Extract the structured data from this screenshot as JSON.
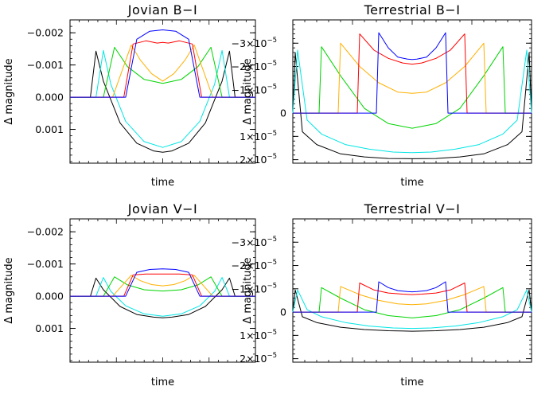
{
  "chart_data": [
    {
      "type": "line",
      "title": "Jovian B−I",
      "xlabel": "time",
      "ylabel": "Δ  magnitude",
      "yticks": [
        {
          "value": -0.002,
          "label": "−0.002"
        },
        {
          "value": -0.001,
          "label": "−0.001"
        },
        {
          "value": 0.0,
          "label": "0.000"
        },
        {
          "value": 0.001,
          "label": "0.001"
        }
      ],
      "ylim": [
        0.00205,
        -0.0024
      ],
      "inverted_y": true,
      "series": [
        {
          "color": "#000000",
          "x": [
            0.0,
            0.11,
            0.14,
            0.18,
            0.27,
            0.36,
            0.45,
            0.5,
            0.55,
            0.64,
            0.73,
            0.82,
            0.86,
            0.89,
            1.0
          ],
          "y": [
            0,
            0,
            -0.00143,
            -0.0005,
            0.0008,
            0.00143,
            0.00167,
            0.00171,
            0.00167,
            0.00143,
            0.0008,
            -0.0005,
            -0.00143,
            0,
            0
          ]
        },
        {
          "color": "#00e5e5",
          "x": [
            0.0,
            0.14,
            0.18,
            0.22,
            0.3,
            0.4,
            0.5,
            0.6,
            0.7,
            0.78,
            0.82,
            0.86,
            1.0
          ],
          "y": [
            0,
            0,
            -0.00145,
            -0.0004,
            0.00075,
            0.00138,
            0.00156,
            0.00138,
            0.00075,
            -0.0004,
            -0.00145,
            0,
            0
          ]
        },
        {
          "color": "#00d400",
          "x": [
            0.0,
            0.18,
            0.24,
            0.31,
            0.4,
            0.5,
            0.6,
            0.69,
            0.76,
            0.82,
            1.0
          ],
          "y": [
            0,
            0,
            -0.00155,
            -0.00095,
            -0.00055,
            -0.00043,
            -0.00055,
            -0.00095,
            -0.00155,
            0,
            0
          ]
        },
        {
          "color": "#ffb000",
          "x": [
            0.0,
            0.23,
            0.33,
            0.38,
            0.44,
            0.5,
            0.56,
            0.62,
            0.67,
            0.77,
            1.0
          ],
          "y": [
            0,
            0,
            -0.00162,
            -0.00115,
            -0.00073,
            -0.0005,
            -0.00073,
            -0.00115,
            -0.00162,
            0,
            0
          ]
        },
        {
          "color": "#ff0000",
          "x": [
            0.0,
            0.29,
            0.34,
            0.41,
            0.47,
            0.5,
            0.53,
            0.59,
            0.66,
            0.71,
            1.0
          ],
          "y": [
            0,
            0,
            -0.00165,
            -0.00175,
            -0.00168,
            -0.0017,
            -0.00168,
            -0.00175,
            -0.00165,
            0,
            0
          ]
        },
        {
          "color": "#0000ff",
          "x": [
            0.0,
            0.3,
            0.36,
            0.43,
            0.5,
            0.57,
            0.64,
            0.7,
            1.0
          ],
          "y": [
            0,
            0,
            -0.0018,
            -0.00205,
            -0.00209,
            -0.00205,
            -0.0018,
            0,
            0
          ]
        }
      ]
    },
    {
      "type": "line",
      "title": "Terrestrial B−I",
      "xlabel": "time",
      "ylabel": "Δ  magnitude",
      "yticks": [
        {
          "value": -3e-05,
          "label": "−3×10",
          "exp": "−5"
        },
        {
          "value": -2e-05,
          "label": "−2×10",
          "exp": "−5"
        },
        {
          "value": -1e-05,
          "label": "−1×10",
          "exp": "−5"
        },
        {
          "value": 0,
          "label": "0",
          "exp": ""
        },
        {
          "value": 1e-05,
          "label": "1×10",
          "exp": "−5"
        },
        {
          "value": 2e-05,
          "label": "2×10",
          "exp": "−5"
        }
      ],
      "ylim": [
        2.15e-05,
        -4e-05
      ],
      "inverted_y": true,
      "series": [
        {
          "color": "#000000",
          "x": [
            0.0,
            0.01,
            0.04,
            0.1,
            0.2,
            0.3,
            0.4,
            0.5,
            0.6,
            0.7,
            0.8,
            0.9,
            0.96,
            0.99,
            1.0
          ],
          "y": [
            0,
            -2.6e-05,
            8e-06,
            1.35e-05,
            1.75e-05,
            1.88e-05,
            1.95e-05,
            1.96e-05,
            1.95e-05,
            1.88e-05,
            1.75e-05,
            1.35e-05,
            8e-06,
            -2.6e-05,
            0
          ]
        },
        {
          "color": "#00e5e5",
          "x": [
            0.0,
            0.02,
            0.06,
            0.12,
            0.22,
            0.32,
            0.42,
            0.5,
            0.58,
            0.68,
            0.78,
            0.88,
            0.94,
            0.98,
            1.0
          ],
          "y": [
            0,
            -2.7e-05,
            3e-06,
            9e-06,
            1.35e-05,
            1.55e-05,
            1.67e-05,
            1.7e-05,
            1.67e-05,
            1.55e-05,
            1.35e-05,
            9e-06,
            3e-06,
            -2.7e-05,
            0
          ]
        },
        {
          "color": "#00d400",
          "x": [
            0.0,
            0.11,
            0.12,
            0.2,
            0.3,
            0.4,
            0.5,
            0.6,
            0.7,
            0.8,
            0.88,
            0.89,
            1.0
          ],
          "y": [
            0,
            0,
            -2.85e-05,
            -1.6e-05,
            -2e-06,
            4.5e-06,
            6.5e-06,
            4.5e-06,
            -2e-06,
            -1.6e-05,
            -2.85e-05,
            0,
            0
          ]
        },
        {
          "color": "#ffb000",
          "x": [
            0.0,
            0.19,
            0.2,
            0.28,
            0.36,
            0.44,
            0.5,
            0.56,
            0.64,
            0.72,
            0.8,
            0.81,
            1.0
          ],
          "y": [
            0,
            0,
            -3e-05,
            -2e-05,
            -1.3e-05,
            -9e-06,
            -8.5e-06,
            -9e-06,
            -1.3e-05,
            -2e-05,
            -3e-05,
            0,
            0
          ]
        },
        {
          "color": "#ff0000",
          "x": [
            0.0,
            0.27,
            0.28,
            0.34,
            0.4,
            0.46,
            0.5,
            0.54,
            0.6,
            0.66,
            0.72,
            0.73,
            1.0
          ],
          "y": [
            0,
            0,
            -3.4e-05,
            -2.7e-05,
            -2.35e-05,
            -2.15e-05,
            -2.1e-05,
            -2.15e-05,
            -2.35e-05,
            -2.7e-05,
            -3.4e-05,
            0,
            0
          ]
        },
        {
          "color": "#0000ff",
          "x": [
            0.0,
            0.35,
            0.36,
            0.4,
            0.44,
            0.48,
            0.5,
            0.52,
            0.56,
            0.6,
            0.64,
            0.65,
            1.0
          ],
          "y": [
            0,
            0,
            -3.45e-05,
            -2.8e-05,
            -2.4e-05,
            -2.32e-05,
            -2.3e-05,
            -2.32e-05,
            -2.4e-05,
            -2.8e-05,
            -3.45e-05,
            0,
            0
          ]
        }
      ]
    },
    {
      "type": "line",
      "title": "Jovian V−I",
      "xlabel": "time",
      "ylabel": "Δ  magnitude",
      "yticks": [
        {
          "value": -0.002,
          "label": "−0.002"
        },
        {
          "value": -0.001,
          "label": "−0.001"
        },
        {
          "value": 0.0,
          "label": "0.000"
        },
        {
          "value": 0.001,
          "label": "0.001"
        }
      ],
      "ylim": [
        0.00205,
        -0.0024
      ],
      "inverted_y": true,
      "series": [
        {
          "color": "#000000",
          "x": [
            0.0,
            0.11,
            0.14,
            0.18,
            0.27,
            0.36,
            0.45,
            0.5,
            0.55,
            0.64,
            0.73,
            0.82,
            0.86,
            0.89,
            1.0
          ],
          "y": [
            0,
            0,
            -0.00056,
            -0.0002,
            0.00032,
            0.00057,
            0.00065,
            0.00067,
            0.00065,
            0.00057,
            0.00032,
            -0.0002,
            -0.00056,
            0,
            0
          ]
        },
        {
          "color": "#00e5e5",
          "x": [
            0.0,
            0.14,
            0.18,
            0.22,
            0.3,
            0.4,
            0.5,
            0.6,
            0.7,
            0.78,
            0.82,
            0.86,
            1.0
          ],
          "y": [
            0,
            0,
            -0.00058,
            -0.00015,
            0.0003,
            0.00055,
            0.00062,
            0.00055,
            0.0003,
            -0.00015,
            -0.00058,
            0,
            0
          ]
        },
        {
          "color": "#00d400",
          "x": [
            0.0,
            0.18,
            0.24,
            0.31,
            0.4,
            0.5,
            0.6,
            0.69,
            0.76,
            0.82,
            1.0
          ],
          "y": [
            0,
            0,
            -0.0006,
            -0.00035,
            -0.0002,
            -0.00016,
            -0.0002,
            -0.00035,
            -0.0006,
            0,
            0
          ]
        },
        {
          "color": "#ffb000",
          "x": [
            0.0,
            0.23,
            0.33,
            0.38,
            0.44,
            0.5,
            0.56,
            0.62,
            0.67,
            0.77,
            1.0
          ],
          "y": [
            0,
            0,
            -0.00065,
            -0.00048,
            -0.00036,
            -0.00032,
            -0.00036,
            -0.00048,
            -0.00065,
            0,
            0
          ]
        },
        {
          "color": "#ff0000",
          "x": [
            0.0,
            0.29,
            0.34,
            0.41,
            0.47,
            0.5,
            0.53,
            0.59,
            0.66,
            0.71,
            1.0
          ],
          "y": [
            0,
            0,
            -0.00066,
            -0.00069,
            -0.00069,
            -0.00069,
            -0.00069,
            -0.00069,
            -0.00066,
            0,
            0
          ]
        },
        {
          "color": "#0000ff",
          "x": [
            0.0,
            0.3,
            0.36,
            0.43,
            0.5,
            0.57,
            0.64,
            0.7,
            1.0
          ],
          "y": [
            0,
            0,
            -0.00074,
            -0.00083,
            -0.00085,
            -0.00083,
            -0.00074,
            0,
            0
          ]
        }
      ]
    },
    {
      "type": "line",
      "title": "Terrestrial V−I",
      "xlabel": "time",
      "ylabel": "Δ  magnitude",
      "yticks": [
        {
          "value": -3e-05,
          "label": "−3×10",
          "exp": "−5"
        },
        {
          "value": -2e-05,
          "label": "−2×10",
          "exp": "−5"
        },
        {
          "value": -1e-05,
          "label": "−1×10",
          "exp": "−5"
        },
        {
          "value": 0,
          "label": "0",
          "exp": ""
        },
        {
          "value": 1e-05,
          "label": "1×10",
          "exp": "−5"
        },
        {
          "value": 2e-05,
          "label": "2×10",
          "exp": "−5"
        }
      ],
      "ylim": [
        2.15e-05,
        -4e-05
      ],
      "inverted_y": true,
      "series": [
        {
          "color": "#000000",
          "x": [
            0.0,
            0.01,
            0.04,
            0.1,
            0.2,
            0.3,
            0.4,
            0.5,
            0.6,
            0.7,
            0.8,
            0.9,
            0.96,
            0.99,
            1.0
          ],
          "y": [
            0,
            -9.5e-06,
            2e-06,
            4.5e-06,
            6.5e-06,
            7.5e-06,
            8e-06,
            8.2e-06,
            8e-06,
            7.5e-06,
            6.5e-06,
            4.5e-06,
            2e-06,
            -9.5e-06,
            0
          ]
        },
        {
          "color": "#00e5e5",
          "x": [
            0.0,
            0.02,
            0.06,
            0.12,
            0.22,
            0.32,
            0.42,
            0.5,
            0.58,
            0.68,
            0.78,
            0.88,
            0.94,
            0.98,
            1.0
          ],
          "y": [
            0,
            -9.5e-06,
            -1e-06,
            2e-06,
            4.5e-06,
            6e-06,
            6.8e-06,
            7e-06,
            6.8e-06,
            6e-06,
            4.5e-06,
            2e-06,
            -1e-06,
            -9.5e-06,
            0
          ]
        },
        {
          "color": "#00d400",
          "x": [
            0.0,
            0.11,
            0.12,
            0.2,
            0.3,
            0.4,
            0.5,
            0.6,
            0.7,
            0.8,
            0.88,
            0.89,
            1.0
          ],
          "y": [
            0,
            0,
            -1.05e-05,
            -6e-06,
            -1e-06,
            1.5e-06,
            2.5e-06,
            1.5e-06,
            -1e-06,
            -6e-06,
            -1.05e-05,
            0,
            0
          ]
        },
        {
          "color": "#ffb000",
          "x": [
            0.0,
            0.19,
            0.2,
            0.28,
            0.36,
            0.44,
            0.5,
            0.56,
            0.64,
            0.72,
            0.8,
            0.81,
            1.0
          ],
          "y": [
            0,
            0,
            -1.1e-05,
            -7.5e-06,
            -5e-06,
            -3.5e-06,
            -3.2e-06,
            -3.5e-06,
            -5e-06,
            -7.5e-06,
            -1.1e-05,
            0,
            0
          ]
        },
        {
          "color": "#ff0000",
          "x": [
            0.0,
            0.27,
            0.28,
            0.34,
            0.4,
            0.46,
            0.5,
            0.54,
            0.6,
            0.66,
            0.72,
            0.73,
            1.0
          ],
          "y": [
            0,
            0,
            -1.25e-05,
            -9.5e-06,
            -8.2e-06,
            -7.7e-06,
            -7.5e-06,
            -7.7e-06,
            -8.2e-06,
            -9.5e-06,
            -1.25e-05,
            0,
            0
          ]
        },
        {
          "color": "#0000ff",
          "x": [
            0.0,
            0.35,
            0.36,
            0.4,
            0.44,
            0.48,
            0.5,
            0.52,
            0.56,
            0.6,
            0.64,
            0.65,
            1.0
          ],
          "y": [
            0,
            0,
            -1.3e-05,
            -1.05e-05,
            -9.2e-06,
            -8.8e-06,
            -8.7e-06,
            -8.8e-06,
            -9.2e-06,
            -1.05e-05,
            -1.3e-05,
            0,
            0
          ]
        }
      ]
    }
  ]
}
